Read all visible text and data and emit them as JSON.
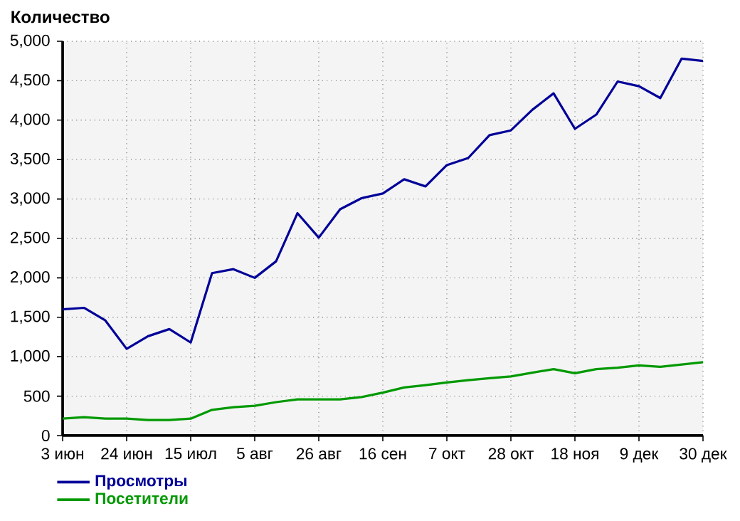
{
  "chart_data": {
    "type": "line",
    "ylabel": "Количество",
    "categories": [
      "3 июн",
      null,
      null,
      "24 июн",
      null,
      null,
      "15 июл",
      null,
      null,
      "5 авг",
      null,
      null,
      "26 авг",
      null,
      null,
      "16 сен",
      null,
      null,
      "7 окт",
      null,
      null,
      "28 окт",
      null,
      null,
      "18 ноя",
      null,
      null,
      "9 дек",
      null,
      null,
      "30 дек"
    ],
    "series": [
      {
        "name": "Просмотры",
        "color": "#000099",
        "values": [
          1600,
          1620,
          1460,
          1100,
          1260,
          1350,
          1180,
          2060,
          2110,
          2000,
          2210,
          2820,
          2510,
          2870,
          3010,
          3070,
          3250,
          3160,
          3430,
          3520,
          3810,
          3870,
          4130,
          4340,
          3890,
          4070,
          4490,
          4430,
          4280,
          4780,
          4750
        ]
      },
      {
        "name": "Посетители",
        "color": "#009900",
        "values": [
          215,
          233,
          215,
          215,
          198,
          198,
          215,
          326,
          360,
          378,
          424,
          459,
          459,
          459,
          488,
          545,
          610,
          640,
          674,
          703,
          727,
          750,
          797,
          843,
          791,
          843,
          860,
          890,
          872,
          901,
          930
        ]
      }
    ],
    "ylim": [
      0,
      5000
    ],
    "yticks": [
      {
        "value": 0,
        "label": "0"
      },
      {
        "value": 500,
        "label": "500"
      },
      {
        "value": 1000,
        "label": "1,000"
      },
      {
        "value": 1500,
        "label": "1,500"
      },
      {
        "value": 2000,
        "label": "2,000"
      },
      {
        "value": 2500,
        "label": "2,500"
      },
      {
        "value": 3000,
        "label": "3,000"
      },
      {
        "value": 3500,
        "label": "3,500"
      },
      {
        "value": 4000,
        "label": "4,000"
      },
      {
        "value": 4500,
        "label": "4,500"
      },
      {
        "value": 5000,
        "label": "5,000"
      }
    ],
    "grid": true,
    "legend": "bottom left"
  }
}
